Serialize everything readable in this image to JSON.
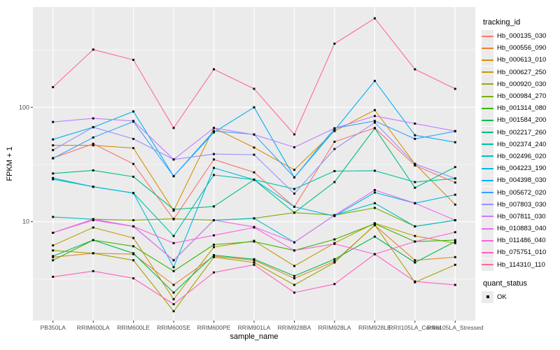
{
  "chart_data": {
    "type": "line",
    "title": "",
    "xlabel": "sample_name",
    "ylabel": "FPKM + 1",
    "y_scale": "log10",
    "y_ticks": [
      100,
      10
    ],
    "y_minor_gridlines": [
      3.162,
      31.62,
      316.2
    ],
    "ylim": [
      1.35,
      750
    ],
    "grid": true,
    "legend_position": "right",
    "panel_bg": "#EBEBEB",
    "grid_color": "#FFFFFF",
    "tick_label_color": "#4D4D4D",
    "point_color": "#0a0a0a",
    "point_shape": "filled-square",
    "legend_title": "tracking_id",
    "legend2": {
      "title": "quant_status",
      "items": [
        {
          "label": "OK",
          "shape": "filled-square"
        }
      ]
    },
    "categories": [
      "PB350LA",
      "RRIM600LA",
      "RRIM600LE",
      "RRIM600SE",
      "RRIM600PE",
      "RRIM901LA",
      "RRIM928BA",
      "RRIM928LA",
      "RRIM928LE",
      "RRII105LA_Control",
      "RRII105LA_Stressed"
    ],
    "series": [
      {
        "name": "Hb_000135_030",
        "color": "#F8766D",
        "values": [
          36,
          48,
          32,
          10.5,
          35,
          27,
          13.5,
          50,
          66,
          31,
          22
        ]
      },
      {
        "name": "Hb_000556_090",
        "color": "#EA8331",
        "values": [
          4.9,
          5.3,
          5.2,
          2.8,
          5.0,
          4.6,
          3.2,
          4.5,
          9.3,
          4.6,
          4.9
        ]
      },
      {
        "name": "Hb_000613_010",
        "color": "#D89000",
        "values": [
          46.5,
          46.5,
          44,
          12.5,
          66,
          44.5,
          28.4,
          62,
          94.5,
          32,
          14.1
        ]
      },
      {
        "name": "Hb_000627_250",
        "color": "#C09B00",
        "values": [
          6.2,
          8.9,
          7.2,
          2.1,
          6.0,
          6.8,
          4.1,
          6.5,
          9.7,
          7.5,
          6.5
        ]
      },
      {
        "name": "Hb_000920_030",
        "color": "#A3A500",
        "values": [
          5.6,
          5.3,
          4.6,
          1.65,
          4.9,
          4.4,
          2.8,
          4.4,
          9.4,
          2.95,
          4.2
        ]
      },
      {
        "name": "Hb_000984_270",
        "color": "#7CAE00",
        "values": [
          8.0,
          10.5,
          10.3,
          10.6,
          10.3,
          10.7,
          12.0,
          11.4,
          13.2,
          9.1,
          10.3
        ]
      },
      {
        "name": "Hb_001314_080",
        "color": "#39B600",
        "values": [
          4.6,
          6.9,
          6.1,
          3.7,
          6.3,
          6.7,
          5.6,
          7.0,
          9.6,
          6.7,
          6.9
        ]
      },
      {
        "name": "Hb_001584_200",
        "color": "#00BB4E",
        "values": [
          5.0,
          6.9,
          5.3,
          2.4,
          5.1,
          4.7,
          3.35,
          4.7,
          7.4,
          4.4,
          6.7
        ]
      },
      {
        "name": "Hb_002217_260",
        "color": "#00BF7D",
        "values": [
          26.4,
          28.1,
          24.7,
          12.8,
          13.6,
          23.3,
          12.0,
          22.2,
          65.5,
          19.8,
          30
        ]
      },
      {
        "name": "Hb_002374_240",
        "color": "#00C1A3",
        "values": [
          23.5,
          20.2,
          17.8,
          7.5,
          25.6,
          23.3,
          19.3,
          27.7,
          27.9,
          22.2,
          23.9
        ]
      },
      {
        "name": "Hb_002496_020",
        "color": "#00BFC4",
        "values": [
          11.0,
          10.5,
          9.1,
          4.6,
          10.3,
          10.7,
          6.6,
          11.4,
          14.5,
          9.1,
          10.3
        ]
      },
      {
        "name": "Hb_004223_190",
        "color": "#00BAE0",
        "values": [
          24.1,
          20.2,
          17.8,
          4.0,
          29.5,
          23.3,
          13.5,
          11.2,
          18.0,
          14.5,
          17.2
        ]
      },
      {
        "name": "Hb_004398_030",
        "color": "#00B0F6",
        "values": [
          52.4,
          67,
          92,
          25,
          60.4,
          100,
          24.4,
          63,
          170,
          57,
          49.5
        ]
      },
      {
        "name": "Hb_005672_020",
        "color": "#35A2FF",
        "values": [
          35.8,
          54.5,
          75,
          25,
          62,
          58,
          24.4,
          65.5,
          76,
          53,
          61.7
        ]
      },
      {
        "name": "Hb_007803_030",
        "color": "#9590FF",
        "values": [
          42.3,
          67,
          53,
          35,
          39,
          38.5,
          17.6,
          43.2,
          73.5,
          32,
          23.9
        ]
      },
      {
        "name": "Hb_007811_030",
        "color": "#C77CFF",
        "values": [
          74.5,
          80,
          76,
          35,
          66,
          57.7,
          44.7,
          65.5,
          84,
          72,
          62
        ]
      },
      {
        "name": "Hb_010883_040",
        "color": "#E76BF3",
        "values": [
          8.0,
          10.3,
          9.1,
          4.6,
          10.3,
          9.0,
          6.6,
          11.4,
          18.9,
          14.5,
          10.3
        ]
      },
      {
        "name": "Hb_011486_040",
        "color": "#FA62DB",
        "values": [
          8.0,
          10.5,
          9.1,
          6.5,
          7.6,
          8.9,
          5.6,
          6.4,
          5.2,
          6.7,
          8.1
        ]
      },
      {
        "name": "Hb_075751_010",
        "color": "#FF62BC",
        "values": [
          3.3,
          3.7,
          3.2,
          1.9,
          3.6,
          4.2,
          2.4,
          2.85,
          5.2,
          3.0,
          2.8
        ]
      },
      {
        "name": "Hb_114310_110",
        "color": "#FF6A98",
        "values": [
          150,
          320,
          260,
          66,
          215,
          145,
          58,
          360,
          600,
          215,
          145
        ]
      }
    ]
  }
}
